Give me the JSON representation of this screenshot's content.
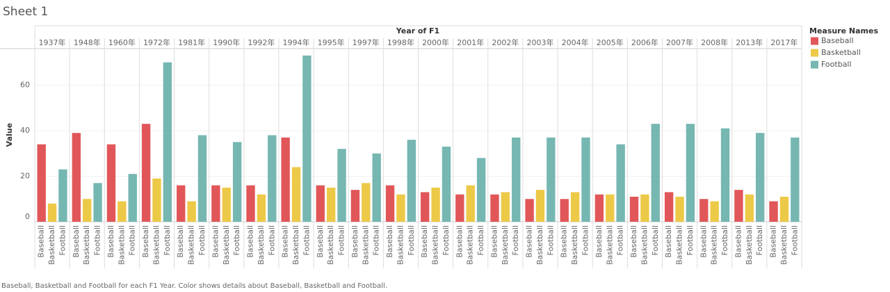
{
  "chart_data": {
    "type": "bar",
    "title": "Sheet 1",
    "x_axis_title": "Year of F1",
    "y_axis_title": "Value",
    "legend_title": "Measure Names",
    "categories": [
      "1937年",
      "1948年",
      "1960年",
      "1972年",
      "1981年",
      "1990年",
      "1992年",
      "1994年",
      "1995年",
      "1997年",
      "1998年",
      "2000年",
      "2001年",
      "2002年",
      "2003年",
      "2004年",
      "2005年",
      "2006年",
      "2007年",
      "2008年",
      "2013年",
      "2017年"
    ],
    "series": [
      {
        "name": "Baseball",
        "color": "#e15759",
        "values": [
          34,
          39,
          34,
          43,
          16,
          16,
          16,
          37,
          16,
          14,
          16,
          13,
          12,
          12,
          10,
          10,
          12,
          11,
          13,
          10,
          14,
          9
        ]
      },
      {
        "name": "Basketball",
        "color": "#edc948",
        "values": [
          8,
          10,
          9,
          19,
          9,
          15,
          12,
          24,
          15,
          17,
          12,
          15,
          16,
          13,
          14,
          13,
          12,
          12,
          11,
          9,
          12,
          11
        ]
      },
      {
        "name": "Football",
        "color": "#76b7b2",
        "values": [
          23,
          17,
          21,
          70,
          38,
          35,
          38,
          73,
          32,
          30,
          36,
          33,
          28,
          37,
          37,
          37,
          34,
          43,
          43,
          41,
          39,
          37
        ]
      }
    ],
    "ylim": [
      0,
      76
    ],
    "yticks": [
      0,
      20,
      40,
      60
    ],
    "grid": true,
    "legend": "right",
    "caption": "Baseball, Basketball and Football for each F1 Year.  Color shows details about Baseball, Basketball and Football."
  }
}
